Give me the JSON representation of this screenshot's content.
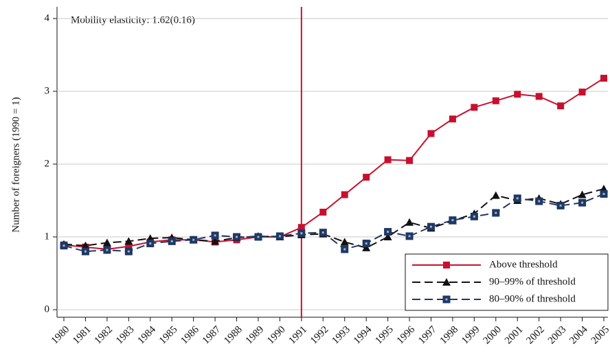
{
  "chart_data": {
    "type": "line",
    "annotation": "Mobility elasticity: 1.62(0.16)",
    "y_label": "Number of foreigners (1990 = 1)",
    "x": [
      1980,
      1981,
      1982,
      1983,
      1984,
      1985,
      1986,
      1987,
      1988,
      1989,
      1990,
      1991,
      1992,
      1993,
      1994,
      1995,
      1996,
      1997,
      1998,
      1999,
      2000,
      2001,
      2002,
      2003,
      2004,
      2005
    ],
    "xlim": [
      1980,
      2005
    ],
    "xticks": [
      1980,
      1981,
      1982,
      1983,
      1984,
      1985,
      1986,
      1987,
      1988,
      1989,
      1990,
      1991,
      1992,
      1993,
      1994,
      1995,
      1996,
      1997,
      1998,
      1999,
      2000,
      2001,
      2002,
      2003,
      2004,
      2005
    ],
    "ylim": [
      0,
      4
    ],
    "yticks": [
      0,
      1,
      2,
      3,
      4
    ],
    "grid": true,
    "vline": 1991,
    "vline_color": "#c8102e",
    "legend": "lower right",
    "series": [
      {
        "name": "Above threshold",
        "color": "#c8102e",
        "marker": "square",
        "dash": "solid",
        "values": [
          0.89,
          0.86,
          0.83,
          0.87,
          0.93,
          0.96,
          0.96,
          0.93,
          0.96,
          1.0,
          1.0,
          1.13,
          1.34,
          1.58,
          1.82,
          2.06,
          2.05,
          2.42,
          2.62,
          2.78,
          2.87,
          2.96,
          2.93,
          2.8,
          2.99,
          3.18
        ]
      },
      {
        "name": "90–99% of threshold",
        "color": "#111111",
        "marker": "triangle",
        "dash": "dashed",
        "values": [
          0.9,
          0.88,
          0.92,
          0.94,
          0.98,
          0.99,
          0.96,
          0.94,
          0.99,
          1.01,
          1.0,
          1.03,
          1.04,
          0.93,
          0.85,
          1.0,
          1.2,
          1.12,
          1.22,
          1.32,
          1.57,
          1.5,
          1.53,
          1.45,
          1.58,
          1.66
        ]
      },
      {
        "name": "80–90% of threshold",
        "color": "#1f3864",
        "marker": "hollow-square",
        "dash": "dashed",
        "values": [
          0.88,
          0.8,
          0.82,
          0.8,
          0.91,
          0.94,
          0.96,
          1.02,
          1.0,
          1.0,
          1.01,
          1.05,
          1.06,
          0.83,
          0.91,
          1.07,
          1.01,
          1.14,
          1.23,
          1.28,
          1.33,
          1.53,
          1.49,
          1.43,
          1.47,
          1.59
        ]
      }
    ]
  }
}
